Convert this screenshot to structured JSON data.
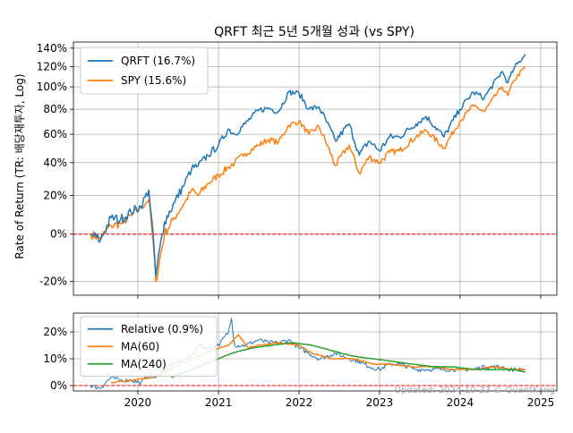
{
  "chart_data": [
    {
      "type": "line",
      "title": "QRFT 최근 5년 5개월 성과 (vs SPY)",
      "ylabel": "Rate of Return (TR: 배당재투자, Log)",
      "y_scale": "log(1+r)",
      "ylim": [
        -25,
        147
      ],
      "y_ticks": [
        -20,
        0,
        20,
        40,
        60,
        80,
        100,
        120,
        140
      ],
      "y_tick_labels": [
        "-20%",
        "0%",
        "20%",
        "40%",
        "60%",
        "80%",
        "100%",
        "120%",
        "140%"
      ],
      "grid": true,
      "legend_position": "top-left",
      "reference_line": {
        "y": 0,
        "color": "#ff0000",
        "style": "dashed"
      },
      "series": [
        {
          "name": "QRFT (16.7%)",
          "color": "#1f77b4",
          "points": [
            [
              "2019-06-01",
              0
            ],
            [
              "2019-07-15",
              -3
            ],
            [
              "2019-09-01",
              8
            ],
            [
              "2019-10-15",
              7
            ],
            [
              "2019-12-01",
              11
            ],
            [
              "2020-01-15",
              14
            ],
            [
              "2020-02-20",
              23
            ],
            [
              "2020-03-23",
              -18
            ],
            [
              "2020-05-01",
              6
            ],
            [
              "2020-06-15",
              16
            ],
            [
              "2020-08-01",
              27
            ],
            [
              "2020-09-01",
              36
            ],
            [
              "2020-10-01",
              38
            ],
            [
              "2020-11-15",
              45
            ],
            [
              "2021-01-01",
              52
            ],
            [
              "2021-02-15",
              64
            ],
            [
              "2021-03-15",
              60
            ],
            [
              "2021-05-01",
              68
            ],
            [
              "2021-07-01",
              79
            ],
            [
              "2021-08-15",
              81
            ],
            [
              "2021-09-30",
              78
            ],
            [
              "2021-11-15",
              95
            ],
            [
              "2022-01-01",
              94
            ],
            [
              "2022-02-15",
              80
            ],
            [
              "2022-04-01",
              82
            ],
            [
              "2022-06-15",
              55
            ],
            [
              "2022-08-15",
              68
            ],
            [
              "2022-10-01",
              45
            ],
            [
              "2022-11-15",
              55
            ],
            [
              "2023-01-01",
              48
            ],
            [
              "2023-02-15",
              58
            ],
            [
              "2023-04-01",
              58
            ],
            [
              "2023-06-15",
              68
            ],
            [
              "2023-07-31",
              74
            ],
            [
              "2023-10-20",
              58
            ],
            [
              "2023-12-31",
              80
            ],
            [
              "2024-03-01",
              95
            ],
            [
              "2024-04-20",
              90
            ],
            [
              "2024-07-10",
              115
            ],
            [
              "2024-08-05",
              104
            ],
            [
              "2024-09-01",
              118
            ],
            [
              "2024-10-23",
              133
            ]
          ]
        },
        {
          "name": "SPY (15.6%)",
          "color": "#ff7f0e",
          "points": [
            [
              "2019-06-01",
              0
            ],
            [
              "2019-07-15",
              -2
            ],
            [
              "2019-09-01",
              4
            ],
            [
              "2019-10-15",
              5
            ],
            [
              "2019-12-01",
              9
            ],
            [
              "2020-01-15",
              13
            ],
            [
              "2020-02-20",
              18
            ],
            [
              "2020-03-23",
              -20
            ],
            [
              "2020-05-01",
              0
            ],
            [
              "2020-06-15",
              8
            ],
            [
              "2020-08-01",
              16
            ],
            [
              "2020-09-01",
              23
            ],
            [
              "2020-10-01",
              20
            ],
            [
              "2020-11-15",
              27
            ],
            [
              "2021-01-01",
              32
            ],
            [
              "2021-02-15",
              37
            ],
            [
              "2021-03-15",
              40
            ],
            [
              "2021-05-01",
              46
            ],
            [
              "2021-07-01",
              52
            ],
            [
              "2021-08-15",
              56
            ],
            [
              "2021-09-30",
              54
            ],
            [
              "2021-11-15",
              67
            ],
            [
              "2022-01-01",
              70
            ],
            [
              "2022-02-15",
              60
            ],
            [
              "2022-04-01",
              66
            ],
            [
              "2022-06-15",
              38
            ],
            [
              "2022-08-15",
              52
            ],
            [
              "2022-10-01",
              33
            ],
            [
              "2022-11-15",
              44
            ],
            [
              "2023-01-01",
              40
            ],
            [
              "2023-02-15",
              47
            ],
            [
              "2023-04-01",
              48
            ],
            [
              "2023-06-15",
              58
            ],
            [
              "2023-07-31",
              63
            ],
            [
              "2023-10-20",
              50
            ],
            [
              "2023-12-31",
              70
            ],
            [
              "2024-03-01",
              83
            ],
            [
              "2024-04-20",
              78
            ],
            [
              "2024-07-10",
              100
            ],
            [
              "2024-08-05",
              92
            ],
            [
              "2024-09-01",
              106
            ],
            [
              "2024-10-23",
              120
            ]
          ]
        }
      ]
    },
    {
      "type": "line",
      "ylim": [
        -2,
        27
      ],
      "y_ticks": [
        0,
        10,
        20
      ],
      "y_tick_labels": [
        "0%",
        "10%",
        "20%"
      ],
      "x_ticks": [
        "2020",
        "2021",
        "2022",
        "2023",
        "2024",
        "2025"
      ],
      "grid": true,
      "legend_position": "top-left",
      "reference_line": {
        "y": 0,
        "color": "#ff0000",
        "style": "dashed"
      },
      "series": [
        {
          "name": "Relative (0.9%)",
          "color": "#1f77b4",
          "points": [
            [
              "2019-06-01",
              0
            ],
            [
              "2019-07-15",
              -1
            ],
            [
              "2019-09-01",
              3
            ],
            [
              "2019-10-15",
              2
            ],
            [
              "2019-12-01",
              2
            ],
            [
              "2020-01-15",
              1
            ],
            [
              "2020-02-20",
              4
            ],
            [
              "2020-03-23",
              3
            ],
            [
              "2020-05-01",
              6
            ],
            [
              "2020-06-15",
              8
            ],
            [
              "2020-08-01",
              10
            ],
            [
              "2020-09-01",
              11
            ],
            [
              "2020-10-01",
              15
            ],
            [
              "2020-11-15",
              14
            ],
            [
              "2021-01-01",
              15
            ],
            [
              "2021-02-15",
              20
            ],
            [
              "2021-03-01",
              25
            ],
            [
              "2021-03-15",
              15
            ],
            [
              "2021-05-01",
              15
            ],
            [
              "2021-07-01",
              17
            ],
            [
              "2021-08-15",
              16
            ],
            [
              "2021-09-30",
              16
            ],
            [
              "2021-11-15",
              17
            ],
            [
              "2022-01-01",
              14
            ],
            [
              "2022-02-15",
              12
            ],
            [
              "2022-04-01",
              10
            ],
            [
              "2022-06-15",
              12
            ],
            [
              "2022-08-15",
              10
            ],
            [
              "2022-10-01",
              9
            ],
            [
              "2022-11-15",
              7
            ],
            [
              "2023-01-01",
              6
            ],
            [
              "2023-02-15",
              8
            ],
            [
              "2023-04-01",
              8
            ],
            [
              "2023-06-15",
              6
            ],
            [
              "2023-07-31",
              6
            ],
            [
              "2023-10-20",
              6
            ],
            [
              "2023-12-31",
              6
            ],
            [
              "2024-03-01",
              6
            ],
            [
              "2024-04-20",
              7
            ],
            [
              "2024-07-10",
              7
            ],
            [
              "2024-08-05",
              6
            ],
            [
              "2024-09-01",
              6
            ],
            [
              "2024-10-23",
              6
            ]
          ]
        },
        {
          "name": "MA(60)",
          "color": "#ff7f0e",
          "points": [
            [
              "2019-09-01",
              1
            ],
            [
              "2019-12-01",
              2
            ],
            [
              "2020-03-01",
              3
            ],
            [
              "2020-06-01",
              6
            ],
            [
              "2020-09-01",
              10
            ],
            [
              "2020-12-01",
              13
            ],
            [
              "2021-02-15",
              15
            ],
            [
              "2021-04-01",
              19
            ],
            [
              "2021-05-15",
              14
            ],
            [
              "2021-07-01",
              15
            ],
            [
              "2021-10-01",
              16
            ],
            [
              "2022-01-01",
              15
            ],
            [
              "2022-03-01",
              12
            ],
            [
              "2022-06-01",
              10
            ],
            [
              "2022-09-01",
              10
            ],
            [
              "2022-12-01",
              8
            ],
            [
              "2023-03-01",
              8
            ],
            [
              "2023-06-01",
              7
            ],
            [
              "2023-09-01",
              7
            ],
            [
              "2023-12-01",
              6
            ],
            [
              "2024-03-01",
              6
            ],
            [
              "2024-06-01",
              7
            ],
            [
              "2024-09-01",
              6
            ],
            [
              "2024-10-23",
              6
            ]
          ]
        },
        {
          "name": "MA(240)",
          "color": "#2ca02c",
          "points": [
            [
              "2020-06-01",
              3
            ],
            [
              "2020-09-01",
              6
            ],
            [
              "2020-12-01",
              9
            ],
            [
              "2021-03-01",
              12
            ],
            [
              "2021-06-01",
              14
            ],
            [
              "2021-09-01",
              15
            ],
            [
              "2021-12-01",
              16
            ],
            [
              "2022-03-01",
              15
            ],
            [
              "2022-06-01",
              13
            ],
            [
              "2022-09-01",
              11
            ],
            [
              "2022-12-01",
              10
            ],
            [
              "2023-03-01",
              9
            ],
            [
              "2023-06-01",
              8
            ],
            [
              "2023-09-01",
              7
            ],
            [
              "2023-12-01",
              7
            ],
            [
              "2024-03-01",
              6
            ],
            [
              "2024-06-01",
              6
            ],
            [
              "2024-09-01",
              6
            ],
            [
              "2024-10-23",
              5
            ]
          ]
        }
      ],
      "annotation": "Updated: 2024-10-23 © QuantKang"
    }
  ]
}
